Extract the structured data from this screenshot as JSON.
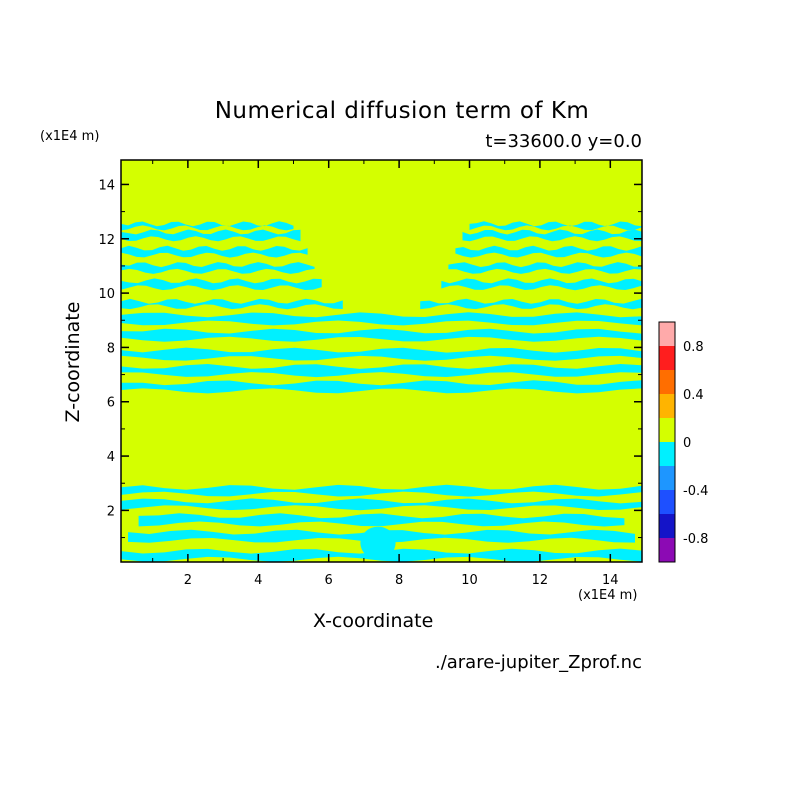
{
  "chart_data": {
    "type": "heatmap",
    "title": "Numerical diffusion term of Km",
    "subtitle": "t=33600.0 y=0.0",
    "xlabel": "X-coordinate",
    "ylabel": "Z-coordinate",
    "x_unit": "(x1E4 m)",
    "y_unit": "(x1E4 m)",
    "source": "./arare-jupiter_Zprof.nc",
    "xlim": [
      0.1,
      14.9
    ],
    "ylim": [
      0.1,
      14.9
    ],
    "x_ticks": [
      2,
      4,
      6,
      8,
      10,
      12,
      14
    ],
    "x_tick_labels": [
      "2",
      "4",
      "6",
      "8",
      "10",
      "12",
      "14"
    ],
    "y_ticks": [
      2,
      4,
      6,
      8,
      10,
      12,
      14
    ],
    "y_tick_labels": [
      "2",
      "4",
      "6",
      "8",
      "10",
      "12",
      "14"
    ],
    "background_value_color": "#d4ff00",
    "stripes": [
      {
        "z": [
          0.2,
          0.5
        ],
        "x": [
          0.1,
          14.9
        ]
      },
      {
        "z": [
          0.9,
          1.2
        ],
        "x": [
          0.3,
          14.7
        ]
      },
      {
        "z": [
          1.5,
          1.8
        ],
        "x": [
          0.6,
          14.4
        ]
      },
      {
        "z": [
          2.1,
          2.35
        ],
        "x": [
          0.1,
          14.9
        ]
      },
      {
        "z": [
          2.6,
          2.85
        ],
        "x": [
          0.1,
          14.9
        ]
      },
      {
        "z": [
          6.4,
          6.7
        ],
        "x": [
          0.1,
          14.9
        ]
      },
      {
        "z": [
          7.0,
          7.3
        ],
        "x": [
          0.1,
          14.9
        ]
      },
      {
        "z": [
          7.6,
          7.9
        ],
        "x": [
          0.1,
          14.9
        ]
      },
      {
        "z": [
          8.3,
          8.6
        ],
        "x": [
          0.1,
          14.9
        ]
      },
      {
        "z": [
          8.9,
          9.2
        ],
        "x": [
          0.1,
          14.9
        ]
      },
      {
        "z": [
          9.5,
          9.7
        ],
        "x": [
          0.1,
          6.4
        ]
      },
      {
        "z": [
          9.5,
          9.7
        ],
        "x": [
          8.6,
          14.9
        ]
      },
      {
        "z": [
          10.2,
          10.45
        ],
        "x": [
          0.1,
          5.8
        ]
      },
      {
        "z": [
          10.2,
          10.45
        ],
        "x": [
          9.2,
          14.9
        ]
      },
      {
        "z": [
          10.8,
          11.05
        ],
        "x": [
          0.1,
          5.6
        ]
      },
      {
        "z": [
          10.8,
          11.05
        ],
        "x": [
          9.4,
          14.9
        ]
      },
      {
        "z": [
          11.4,
          11.65
        ],
        "x": [
          0.1,
          5.4
        ]
      },
      {
        "z": [
          11.4,
          11.65
        ],
        "x": [
          9.6,
          14.9
        ]
      },
      {
        "z": [
          12.0,
          12.25
        ],
        "x": [
          0.1,
          5.2
        ]
      },
      {
        "z": [
          12.0,
          12.25
        ],
        "x": [
          9.8,
          14.9
        ]
      },
      {
        "z": [
          12.4,
          12.55
        ],
        "x": [
          0.1,
          5.0
        ]
      },
      {
        "z": [
          12.4,
          12.55
        ],
        "x": [
          10.0,
          14.9
        ]
      }
    ],
    "colorbar": {
      "levels": [
        {
          "from": -1.0,
          "to": -0.8,
          "color": "#8c0ab4"
        },
        {
          "from": -0.8,
          "to": -0.6,
          "color": "#1414c8"
        },
        {
          "from": -0.6,
          "to": -0.4,
          "color": "#1e50ff"
        },
        {
          "from": -0.4,
          "to": -0.2,
          "color": "#1e96ff"
        },
        {
          "from": -0.2,
          "to": 0.0,
          "color": "#00f0ff"
        },
        {
          "from": 0.0,
          "to": 0.2,
          "color": "#d4ff00"
        },
        {
          "from": 0.2,
          "to": 0.4,
          "color": "#ffb400"
        },
        {
          "from": 0.4,
          "to": 0.6,
          "color": "#ff6e00"
        },
        {
          "from": 0.6,
          "to": 0.8,
          "color": "#ff1e1e"
        },
        {
          "from": 0.8,
          "to": 1.0,
          "color": "#ffaaaa"
        }
      ],
      "tick_values": [
        -0.8,
        -0.4,
        0,
        0.4,
        0.8
      ],
      "tick_labels": [
        "-0.8",
        "-0.4",
        "0",
        "0.4",
        "0.8"
      ]
    }
  }
}
